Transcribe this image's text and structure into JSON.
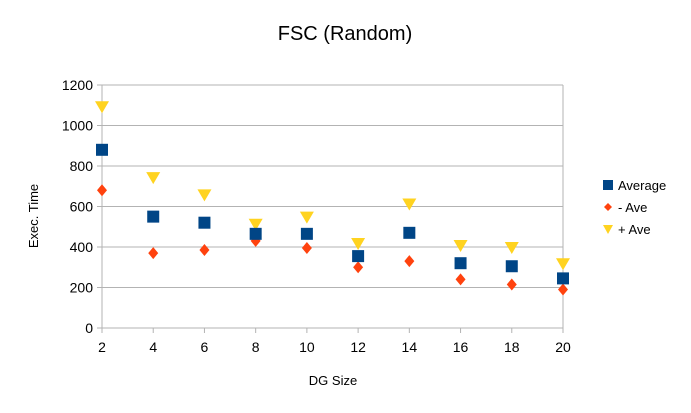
{
  "chart_data": {
    "type": "scatter",
    "title": "FSC (Random)",
    "xlabel": "DG Size",
    "ylabel": "Exec. Time",
    "x": [
      2,
      4,
      6,
      8,
      10,
      12,
      14,
      16,
      18,
      20
    ],
    "xlim": [
      2,
      20
    ],
    "ylim": [
      0,
      1200
    ],
    "x_ticks": [
      2,
      4,
      6,
      8,
      10,
      12,
      14,
      16,
      18,
      20
    ],
    "y_ticks": [
      0,
      200,
      400,
      600,
      800,
      1000,
      1200
    ],
    "grid": "horizontal",
    "legend_position": "right",
    "series": [
      {
        "name": "Average",
        "marker": "square",
        "color": "#004586",
        "values": [
          880,
          550,
          520,
          465,
          465,
          355,
          470,
          320,
          305,
          245
        ]
      },
      {
        "name": "- Ave",
        "marker": "diamond",
        "color": "#ff420e",
        "values": [
          680,
          370,
          385,
          430,
          395,
          300,
          330,
          240,
          215,
          190
        ]
      },
      {
        "name": "+ Ave",
        "marker": "triangle-down",
        "color": "#ffd320",
        "values": [
          1090,
          740,
          655,
          510,
          545,
          415,
          610,
          405,
          395,
          315
        ]
      }
    ]
  }
}
